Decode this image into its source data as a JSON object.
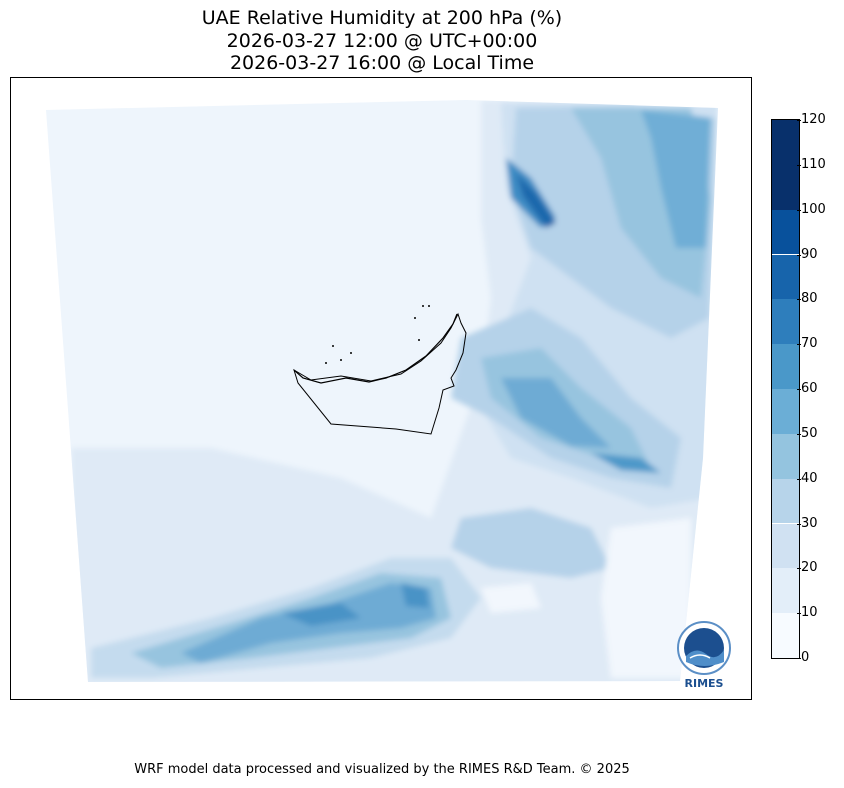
{
  "title": {
    "line1": "UAE Relative Humidity at 200 hPa (%)",
    "line2": "2026-03-27 12:00 @ UTC+00:00",
    "line3": "2026-03-27 16:00 @ Local Time"
  },
  "colorbar": {
    "ticks": [
      "0",
      "10",
      "20",
      "30",
      "40",
      "50",
      "60",
      "70",
      "80",
      "90",
      "100",
      "110",
      "120"
    ],
    "colors": [
      "#f7fbff",
      "#e3eef9",
      "#d0e1f2",
      "#b7d4ea",
      "#94c4df",
      "#6baed6",
      "#4a98c9",
      "#2e7ebc",
      "#1764ab",
      "#08519c",
      "#08306b"
    ]
  },
  "logo": {
    "label": "RIMES"
  },
  "footer": "WRF model data processed and visualized by the RIMES R&D Team. © 2025"
}
